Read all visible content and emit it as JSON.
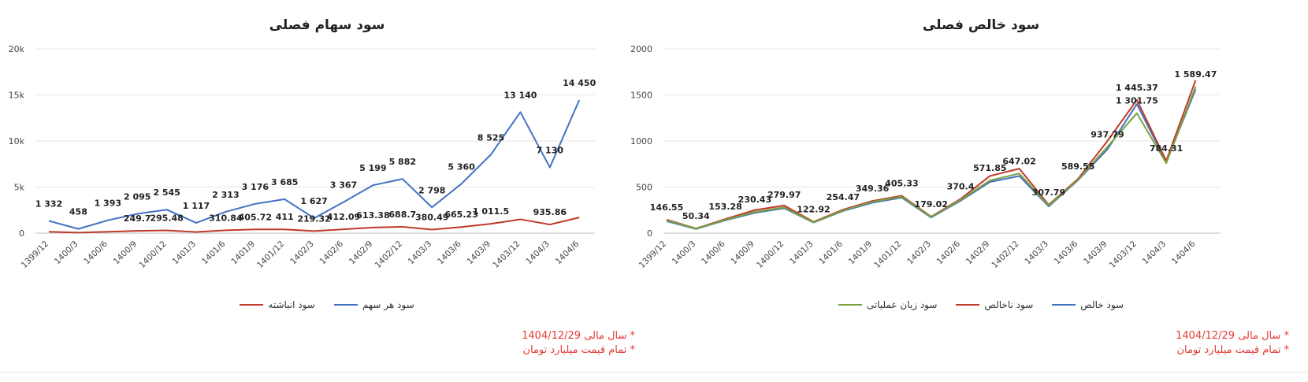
{
  "charts": [
    {
      "id": "left",
      "title": "سود سهام فصلی",
      "notes": [
        "* سال مالی 1404/12/29",
        "* تمام قیمت میلیارد تومان"
      ]
    },
    {
      "id": "right",
      "title": "سود خالص فصلی",
      "notes": [
        "* سال مالی 1404/12/29",
        "* تمام قیمت میلیارد تومان"
      ]
    }
  ],
  "chart_data": [
    {
      "type": "line",
      "title": "سود سهام فصلی",
      "categories": [
        "1399/12",
        "1400/3",
        "1400/6",
        "1400/9",
        "1400/12",
        "1401/3",
        "1401/6",
        "1401/9",
        "1401/12",
        "1402/3",
        "1402/6",
        "1402/9",
        "1402/12",
        "1403/3",
        "1403/6",
        "1403/9",
        "1403/12",
        "1404/3",
        "1404/6"
      ],
      "y_ticks": [
        "0",
        "5k",
        "10k",
        "15k",
        "20k"
      ],
      "ylim": [
        0,
        20000
      ],
      "grid": true,
      "legend_position": "bottom",
      "series": [
        {
          "name": "سود هر سهم",
          "color": "#4472c4",
          "values": [
            1332,
            458,
            1393,
            2095,
            2545,
            1117,
            2313,
            3176,
            3685,
            1627,
            3367,
            5199,
            5882,
            2798,
            5360,
            8525,
            13140,
            7130,
            14450
          ],
          "labels": [
            "1 332",
            "458",
            "1 393",
            "2 095",
            "2 545",
            "1 117",
            "2 313",
            "3 176",
            "3 685",
            "1 627",
            "3 367",
            "5 199",
            "5 882",
            "2 798",
            "5 360",
            "8 525",
            "13 140",
            "7 130",
            "14 450"
          ]
        },
        {
          "name": "سود انباشته",
          "color": "#c0392b",
          "values": [
            146.55,
            50.34,
            153.28,
            249.7,
            295.48,
            122.92,
            310.84,
            405.72,
            411,
            219.32,
            412.09,
            613.38,
            688.7,
            380.49,
            665.23,
            1011.5,
            1500,
            935.86,
            1700
          ],
          "labels": [
            "",
            "",
            "",
            "249.7",
            "295.48",
            "",
            "310.84",
            "405.72",
            "411",
            "219.32",
            "412.09",
            "613.38",
            "688.7",
            "380.49",
            "665.23",
            "1 011.5",
            "",
            "935.86",
            ""
          ]
        }
      ]
    },
    {
      "type": "line",
      "title": "سود خالص فصلی",
      "categories": [
        "1399/12",
        "1400/3",
        "1400/6",
        "1400/9",
        "1400/12",
        "1401/3",
        "1401/6",
        "1401/9",
        "1401/12",
        "1402/3",
        "1402/6",
        "1402/9",
        "1402/12",
        "1403/3",
        "1403/6",
        "1403/9",
        "1403/12",
        "1404/3",
        "1404/6"
      ],
      "y_ticks": [
        "0",
        "500",
        "1000",
        "1500",
        "2000"
      ],
      "ylim": [
        0,
        2000
      ],
      "grid": true,
      "legend_position": "bottom",
      "label_series": [
        "146.55",
        "50.34",
        "153.28",
        "230.43",
        "279.97",
        "122.92",
        "254.47",
        "349.36",
        "405.33",
        "179.02",
        "370.4",
        "571.85",
        "647.02",
        "307.79",
        "589.55",
        "937.79",
        "1 301.75",
        "784.31",
        "1 589.47"
      ],
      "label_values": [
        146.55,
        50.34,
        153.28,
        230.43,
        279.97,
        122.92,
        254.47,
        349.36,
        405.33,
        179.02,
        370.4,
        571.85,
        647.02,
        307.79,
        589.55,
        937.79,
        1301.75,
        784.31,
        1589.47
      ],
      "extra_labels": [
        {
          "category": "1403/12",
          "value": 1445.37,
          "label": "1 445.37"
        }
      ],
      "series": [
        {
          "name": "سود خالص",
          "color": "#4472c4",
          "values": [
            130,
            45,
            140,
            220,
            270,
            115,
            240,
            330,
            385,
            170,
            350,
            555,
            620,
            290,
            575,
            910,
            1400,
            770,
            1560
          ]
        },
        {
          "name": "سود ناخالص",
          "color": "#c0392b",
          "values": [
            146.55,
            50.34,
            153.28,
            250,
            300,
            122.92,
            254.47,
            349.36,
            405.33,
            179.02,
            370.4,
            620,
            700,
            307.79,
            589.55,
            1000,
            1445.37,
            784.31,
            1660
          ]
        },
        {
          "name": "سود زیان عملیاتی",
          "color": "#7aa23f",
          "values": [
            140,
            48,
            145,
            230,
            279.97,
            118,
            245,
            340,
            395,
            175,
            360,
            571.85,
            647.02,
            300,
            580,
            937.79,
            1301.75,
            760,
            1589.47
          ]
        }
      ]
    }
  ]
}
